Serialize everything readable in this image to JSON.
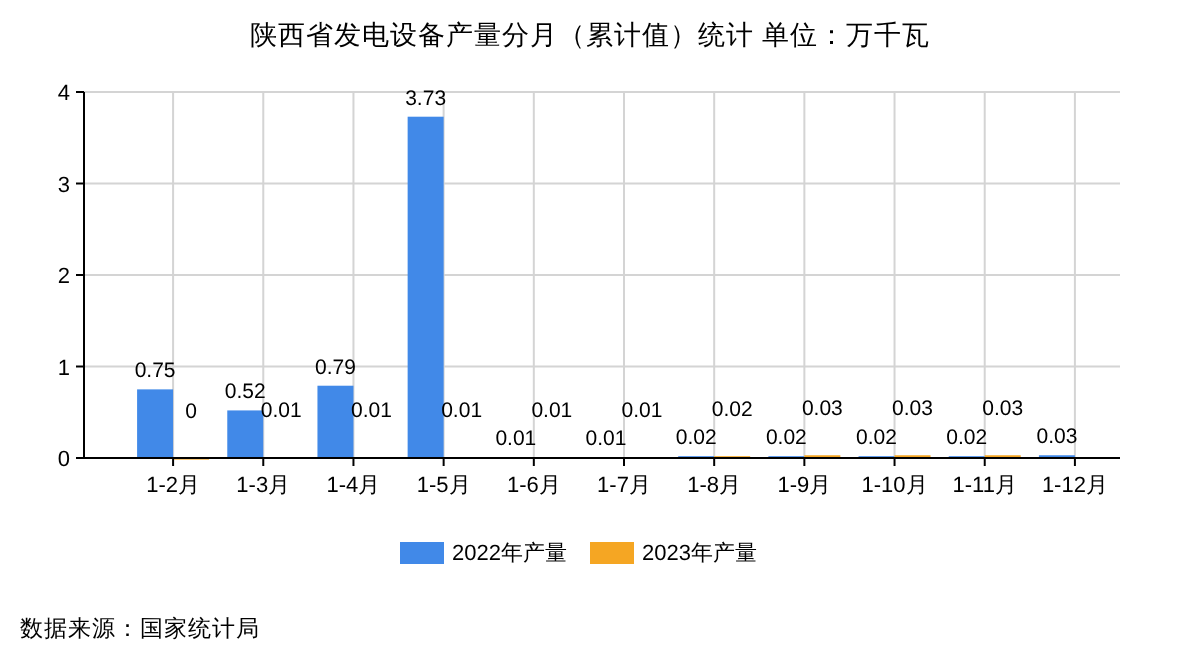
{
  "chart_data": {
    "type": "bar",
    "title": "陕西省发电设备产量分月（累计值）统计 单位：万千瓦",
    "categories": [
      "1-2月",
      "1-3月",
      "1-4月",
      "1-5月",
      "1-6月",
      "1-7月",
      "1-8月",
      "1-9月",
      "1-10月",
      "1-11月",
      "1-12月"
    ],
    "series": [
      {
        "name": "2022年产量",
        "color": "#4189e8",
        "values": [
          0.75,
          0.52,
          0.79,
          3.73,
          0.01,
          0.01,
          0.02,
          0.02,
          0.02,
          0.02,
          0.03
        ]
      },
      {
        "name": "2023年产量",
        "color": "#f5a623",
        "values": [
          0,
          0.01,
          0.01,
          0.01,
          0.01,
          0.01,
          0.02,
          0.03,
          0.03,
          0.03,
          null
        ]
      }
    ],
    "ylim": [
      0,
      4
    ],
    "yticks": [
      0,
      1,
      2,
      3,
      4
    ],
    "grid": true,
    "legend": "bottom",
    "data_labels": true,
    "annotations": [
      "数据来源：国家统计局"
    ]
  }
}
